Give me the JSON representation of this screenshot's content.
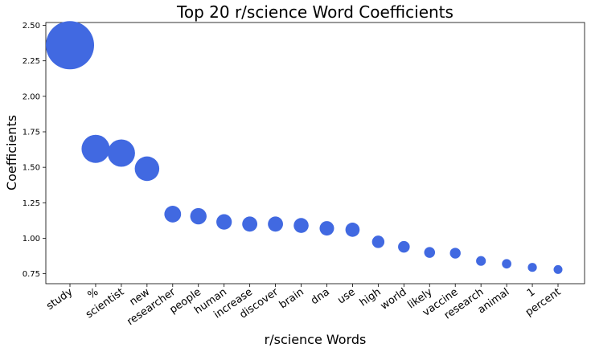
{
  "chart_data": {
    "type": "scatter",
    "title": "Top 20 r/science Word Coefficients",
    "xlabel": "r/science Words",
    "ylabel": "Coefficients",
    "categories": [
      "study",
      "%",
      "scientist",
      "new",
      "researcher",
      "people",
      "human",
      "increase",
      "discover",
      "brain",
      "dna",
      "use",
      "high",
      "world",
      "likely",
      "vaccine",
      "research",
      "animal",
      "1",
      "percent"
    ],
    "values": [
      2.36,
      1.63,
      1.6,
      1.49,
      1.17,
      1.155,
      1.115,
      1.1,
      1.1,
      1.09,
      1.07,
      1.06,
      0.975,
      0.94,
      0.9,
      0.895,
      0.84,
      0.82,
      0.795,
      0.78
    ],
    "ylim": [
      0.68,
      2.52
    ],
    "yticks": [
      "0.75",
      "1.00",
      "1.25",
      "1.50",
      "1.75",
      "2.00",
      "2.25",
      "2.50"
    ],
    "grid": false,
    "legend": "none",
    "marker_size_encodes": "value",
    "color": "#4169e1"
  }
}
